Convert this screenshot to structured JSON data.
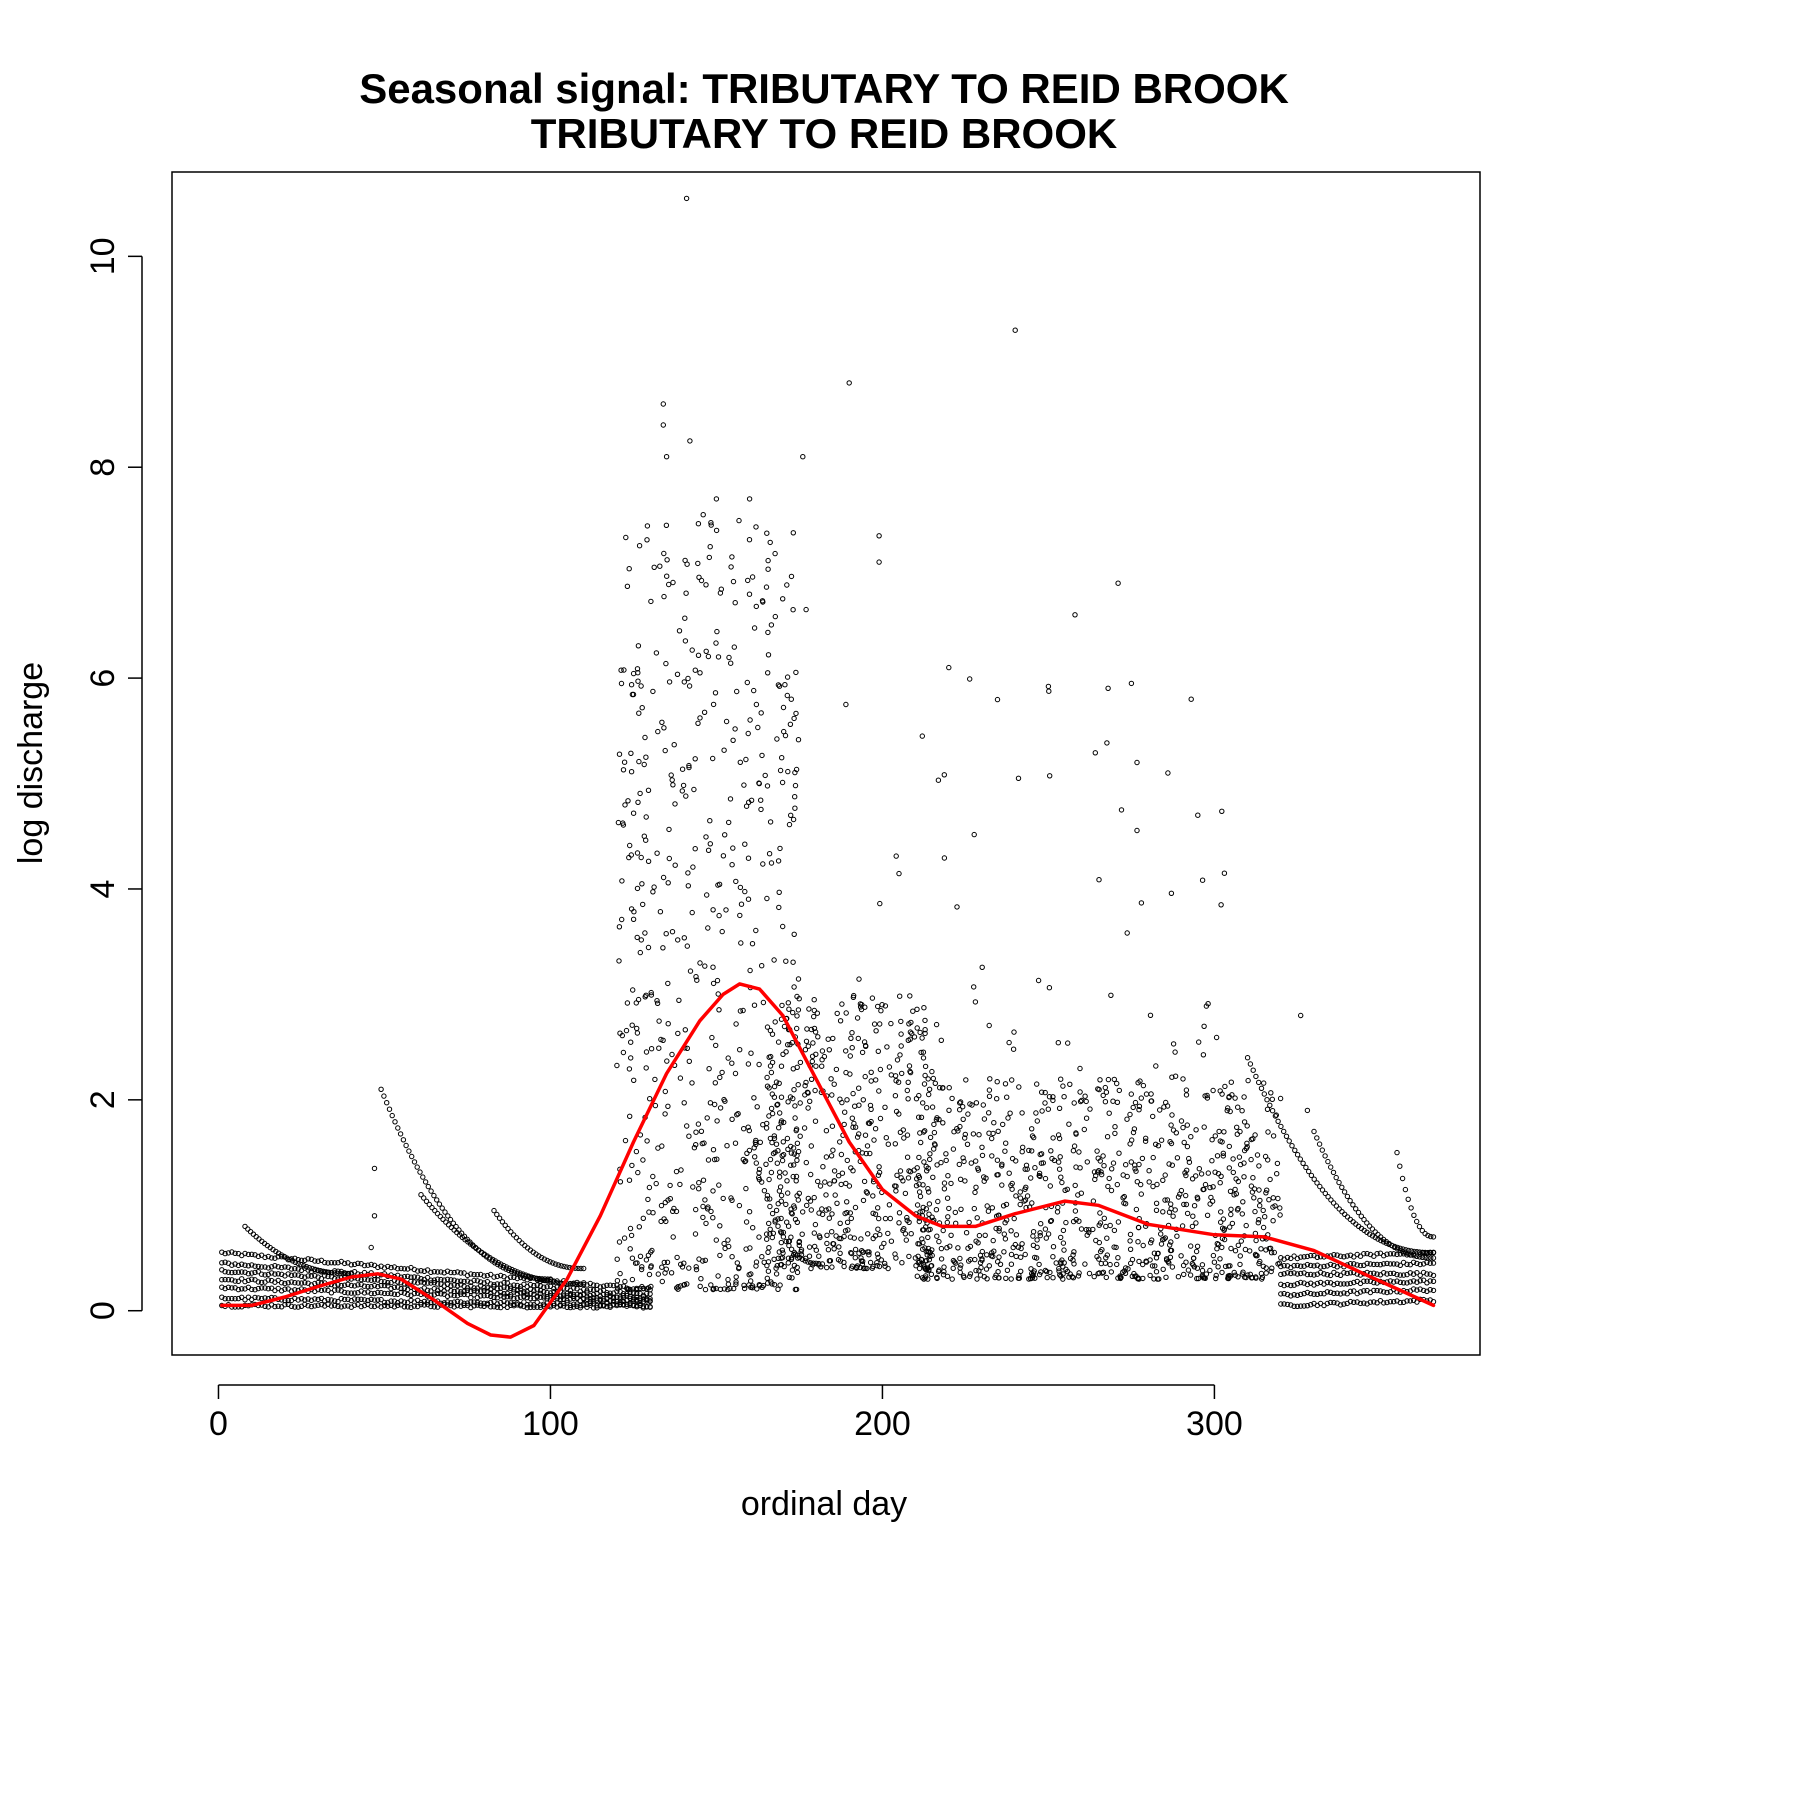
{
  "chart_data": {
    "type": "scatter",
    "title": "Seasonal signal: TRIBUTARY TO REID BROOK",
    "subtitle": "TRIBUTARY TO REID BROOK",
    "xlabel": "ordinal day",
    "ylabel": "log discharge",
    "xlim": [
      -14,
      380
    ],
    "ylim": [
      -0.42,
      10.8
    ],
    "xticks": [
      0,
      100,
      200,
      300
    ],
    "yticks": [
      0,
      2,
      4,
      6,
      8,
      10
    ],
    "grid": false,
    "legend": "none",
    "point_color": "#000000",
    "smooth_color": "#ff0000",
    "seasonal_curve": {
      "x": [
        1,
        10,
        20,
        30,
        40,
        48,
        55,
        65,
        75,
        82,
        88,
        95,
        105,
        115,
        125,
        135,
        145,
        152,
        157,
        163,
        170,
        180,
        190,
        200,
        210,
        218,
        228,
        240,
        255,
        265,
        280,
        300,
        315,
        330,
        345,
        366
      ],
      "y": [
        0.05,
        0.05,
        0.13,
        0.23,
        0.32,
        0.35,
        0.3,
        0.1,
        -0.12,
        -0.23,
        -0.25,
        -0.14,
        0.3,
        0.9,
        1.6,
        2.25,
        2.75,
        3.0,
        3.1,
        3.05,
        2.8,
        2.2,
        1.6,
        1.15,
        0.9,
        0.8,
        0.8,
        0.92,
        1.04,
        1.0,
        0.82,
        0.72,
        0.7,
        0.57,
        0.35,
        0.05
      ]
    },
    "baseline_bands": [
      {
        "x": [
          1,
          130
        ],
        "y": [
          0.55,
          0.2
        ]
      },
      {
        "x": [
          1,
          130
        ],
        "y": [
          0.45,
          0.15
        ]
      },
      {
        "x": [
          1,
          130
        ],
        "y": [
          0.38,
          0.12
        ]
      },
      {
        "x": [
          1,
          130
        ],
        "y": [
          0.3,
          0.1
        ]
      },
      {
        "x": [
          1,
          130
        ],
        "y": [
          0.22,
          0.08
        ]
      },
      {
        "x": [
          1,
          130
        ],
        "y": [
          0.12,
          0.05
        ]
      },
      {
        "x": [
          1,
          130
        ],
        "y": [
          0.05,
          0.04
        ]
      },
      {
        "x": [
          320,
          366
        ],
        "y": [
          0.5,
          0.55
        ]
      },
      {
        "x": [
          320,
          366
        ],
        "y": [
          0.42,
          0.45
        ]
      },
      {
        "x": [
          320,
          366
        ],
        "y": [
          0.35,
          0.35
        ]
      },
      {
        "x": [
          320,
          366
        ],
        "y": [
          0.25,
          0.28
        ]
      },
      {
        "x": [
          320,
          366
        ],
        "y": [
          0.15,
          0.2
        ]
      },
      {
        "x": [
          320,
          366
        ],
        "y": [
          0.05,
          0.1
        ]
      }
    ],
    "recession_curves": [
      {
        "x": [
          49,
          100
        ],
        "y": [
          2.1,
          0.3
        ]
      },
      {
        "x": [
          61,
          110
        ],
        "y": [
          1.1,
          0.25
        ]
      },
      {
        "x": [
          8,
          40
        ],
        "y": [
          0.8,
          0.35
        ]
      },
      {
        "x": [
          83,
          110
        ],
        "y": [
          0.95,
          0.4
        ]
      },
      {
        "x": [
          310,
          366
        ],
        "y": [
          2.4,
          0.55
        ]
      },
      {
        "x": [
          330,
          366
        ],
        "y": [
          1.7,
          0.5
        ]
      },
      {
        "x": [
          355,
          366
        ],
        "y": [
          1.5,
          0.7
        ]
      },
      {
        "x": [
          162,
          180
        ],
        "y": [
          1.4,
          0.45
        ]
      }
    ],
    "scatter_clusters": [
      {
        "x_range": [
          120,
          175
        ],
        "y_range": [
          0.2,
          7.5
        ],
        "count": 650
      },
      {
        "x_range": [
          165,
          215
        ],
        "y_range": [
          0.4,
          3.0
        ],
        "count": 500
      },
      {
        "x_range": [
          210,
          320
        ],
        "y_range": [
          0.3,
          2.2
        ],
        "count": 900
      },
      {
        "x_range": [
          185,
          305
        ],
        "y_range": [
          2.0,
          6.0
        ],
        "count": 70
      }
    ],
    "outliers": [
      {
        "x": 141,
        "y": 10.55
      },
      {
        "x": 240,
        "y": 9.3
      },
      {
        "x": 190,
        "y": 8.8
      },
      {
        "x": 134,
        "y": 8.6
      },
      {
        "x": 134,
        "y": 8.4
      },
      {
        "x": 142,
        "y": 8.25
      },
      {
        "x": 176,
        "y": 8.1
      },
      {
        "x": 135,
        "y": 8.1
      },
      {
        "x": 150,
        "y": 7.7
      },
      {
        "x": 160,
        "y": 7.7
      },
      {
        "x": 146,
        "y": 7.55
      },
      {
        "x": 199,
        "y": 7.35
      },
      {
        "x": 199,
        "y": 7.1
      },
      {
        "x": 271,
        "y": 6.9
      },
      {
        "x": 258,
        "y": 6.6
      },
      {
        "x": 177,
        "y": 6.65
      },
      {
        "x": 220,
        "y": 6.1
      },
      {
        "x": 275,
        "y": 5.95
      },
      {
        "x": 293,
        "y": 5.8
      },
      {
        "x": 189,
        "y": 5.75
      },
      {
        "x": 212,
        "y": 5.45
      },
      {
        "x": 286,
        "y": 5.1
      },
      {
        "x": 241,
        "y": 5.05
      },
      {
        "x": 295,
        "y": 4.7
      },
      {
        "x": 272,
        "y": 4.75
      },
      {
        "x": 303,
        "y": 4.15
      },
      {
        "x": 302,
        "y": 3.85
      },
      {
        "x": 326,
        "y": 2.8
      },
      {
        "x": 328,
        "y": 1.9
      },
      {
        "x": 47,
        "y": 1.35
      },
      {
        "x": 47,
        "y": 0.9
      },
      {
        "x": 46,
        "y": 0.6
      }
    ]
  }
}
